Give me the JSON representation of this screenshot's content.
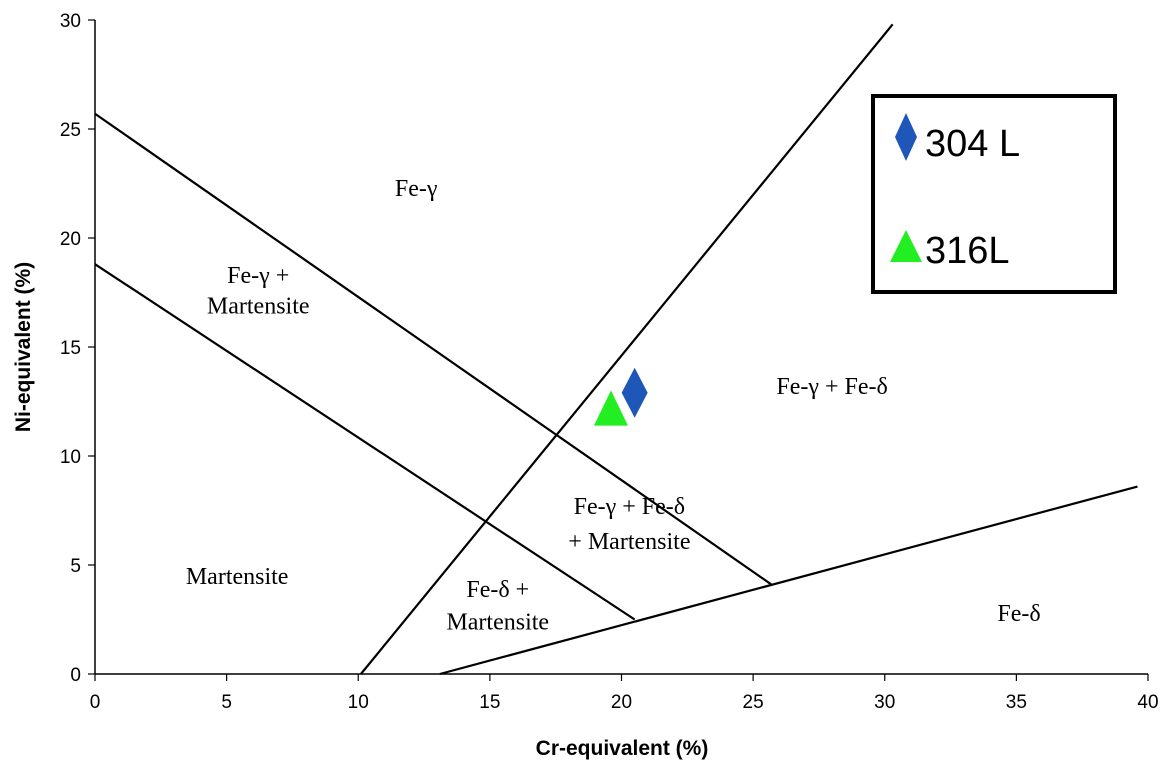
{
  "chart_data": {
    "type": "scatter",
    "xlabel": "Cr-equivalent (%)",
    "ylabel": "Ni-equivalent (%)",
    "xlim": [
      0,
      40
    ],
    "ylim": [
      0,
      30
    ],
    "x_ticks": [
      0,
      5,
      10,
      15,
      20,
      25,
      30,
      35,
      40
    ],
    "y_ticks": [
      0,
      5,
      10,
      15,
      20,
      25,
      30
    ],
    "grid": false,
    "legend_position": "top-right",
    "series": [
      {
        "name": "304 L",
        "marker": "diamond",
        "color": "#1f57b8",
        "points": [
          [
            20.5,
            12.9
          ]
        ]
      },
      {
        "name": "316L",
        "marker": "triangle",
        "color": "#22ee22",
        "points": [
          [
            19.6,
            12.0
          ]
        ]
      }
    ],
    "boundary_lines": [
      {
        "points": [
          [
            0,
            25.7
          ],
          [
            25.7,
            4.1
          ]
        ]
      },
      {
        "points": [
          [
            0,
            18.8
          ],
          [
            20.5,
            2.5
          ]
        ]
      },
      {
        "points": [
          [
            10.1,
            0
          ],
          [
            30.3,
            29.8
          ]
        ]
      },
      {
        "points": [
          [
            13.1,
            0
          ],
          [
            39.6,
            8.6
          ]
        ]
      }
    ],
    "regions": [
      {
        "label": "Fe-γ",
        "x": 12.2,
        "y": 22.3
      },
      {
        "label": "Fe-γ +",
        "x": 6.2,
        "y": 18.3
      },
      {
        "label": "Martensite",
        "x": 6.2,
        "y": 16.9
      },
      {
        "label": "Fe-γ + Fe-δ",
        "x": 28.0,
        "y": 13.2
      },
      {
        "label": "Fe-γ + Fe-δ",
        "x": 20.3,
        "y": 7.7
      },
      {
        "label": "+ Martensite",
        "x": 20.3,
        "y": 6.1
      },
      {
        "label": "Martensite",
        "x": 5.4,
        "y": 4.5
      },
      {
        "label": "Fe-δ +",
        "x": 15.3,
        "y": 3.9
      },
      {
        "label": "Martensite",
        "x": 15.3,
        "y": 2.4
      },
      {
        "label": "Fe-δ",
        "x": 35.1,
        "y": 2.8
      }
    ]
  }
}
